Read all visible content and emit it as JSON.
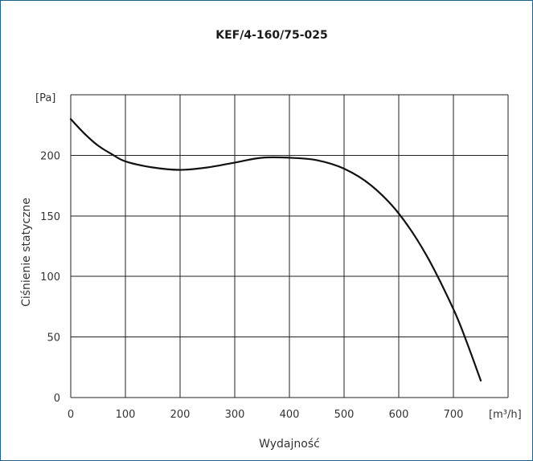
{
  "chart_data": {
    "type": "line",
    "title": "KEF/4-160/75-025",
    "xlabel": "Wydajność",
    "ylabel": "Ciśnienie statyczne",
    "x_unit": "[m³/h]",
    "y_unit": "[Pa]",
    "xlim": [
      0,
      800
    ],
    "ylim": [
      0,
      250
    ],
    "x_ticks": [
      0,
      100,
      200,
      300,
      400,
      500,
      600,
      700
    ],
    "y_ticks": [
      0,
      50,
      100,
      150,
      200
    ],
    "grid": true,
    "colors": {
      "line": "#111111",
      "grid": "#222222",
      "frame": "#1f5f8b"
    },
    "series": [
      {
        "x": [
          0,
          25,
          50,
          75,
          100,
          150,
          200,
          250,
          300,
          350,
          400,
          450,
          500,
          550,
          600,
          650,
          700,
          725,
          750
        ],
        "values": [
          230,
          218,
          208,
          201,
          195,
          190,
          188,
          190,
          194,
          198,
          198,
          196,
          189,
          175,
          152,
          118,
          73,
          45,
          14
        ]
      }
    ]
  }
}
